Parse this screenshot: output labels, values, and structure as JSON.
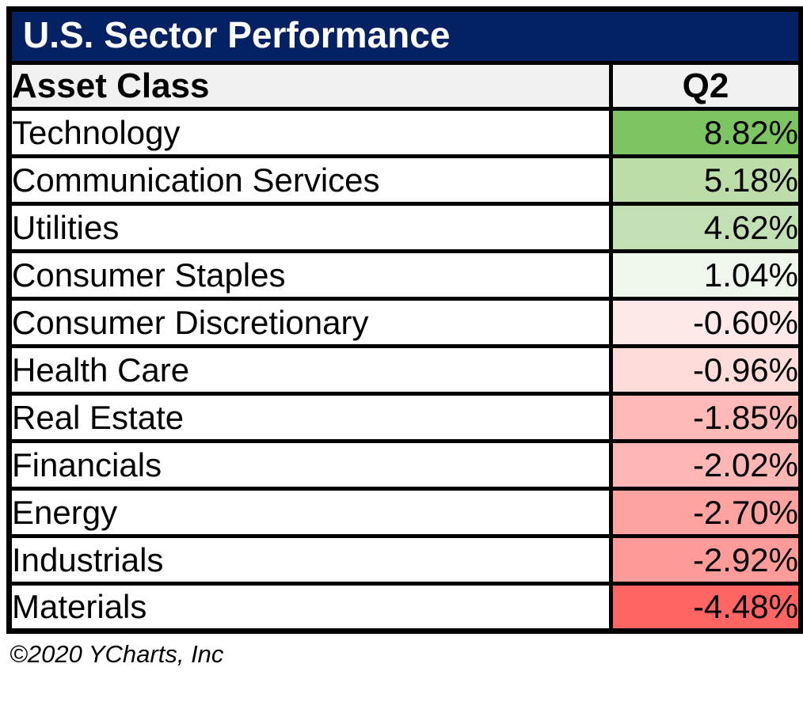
{
  "title": "U.S. Sector Performance",
  "footer": "©2020 YCharts, Inc",
  "colors": {
    "title_bg": "#042163",
    "title_text": "#FFFFFF",
    "header_bg": "#F1F1F1",
    "border": "#000000"
  },
  "table": {
    "col1_header": "Asset Class",
    "col2_header": "Q2",
    "rows": [
      {
        "label": "Technology",
        "value": "8.82%",
        "bg": "#7DC463"
      },
      {
        "label": "Communication Services",
        "value": "5.18%",
        "bg": "#BCDCA8"
      },
      {
        "label": "Utilities",
        "value": "4.62%",
        "bg": "#C3E0B4"
      },
      {
        "label": "Consumer Staples",
        "value": "1.04%",
        "bg": "#EFF6EC"
      },
      {
        "label": "Consumer Discretionary",
        "value": "-0.60%",
        "bg": "#FDE9E8"
      },
      {
        "label": "Health Care",
        "value": "-0.96%",
        "bg": "#FEDCDA"
      },
      {
        "label": "Real Estate",
        "value": "-1.85%",
        "bg": "#FFBAB8"
      },
      {
        "label": "Financials",
        "value": "-2.02%",
        "bg": "#FFB7B5"
      },
      {
        "label": "Energy",
        "value": "-2.70%",
        "bg": "#FFA3A1"
      },
      {
        "label": "Industrials",
        "value": "-2.92%",
        "bg": "#FF9B99"
      },
      {
        "label": "Materials",
        "value": "-4.48%",
        "bg": "#FF6663"
      }
    ]
  },
  "chart_data": {
    "type": "table",
    "title": "U.S. Sector Performance",
    "columns": [
      "Asset Class",
      "Q2"
    ],
    "categories": [
      "Technology",
      "Communication Services",
      "Utilities",
      "Consumer Staples",
      "Consumer Discretionary",
      "Health Care",
      "Real Estate",
      "Financials",
      "Energy",
      "Industrials",
      "Materials"
    ],
    "values": [
      8.82,
      5.18,
      4.62,
      1.04,
      -0.6,
      -0.96,
      -1.85,
      -2.02,
      -2.7,
      -2.92,
      -4.48
    ],
    "value_unit": "percent",
    "color_encoding": "green for positive values, red for negative values, intensity scaled by magnitude",
    "source": "©2020 YCharts, Inc"
  }
}
